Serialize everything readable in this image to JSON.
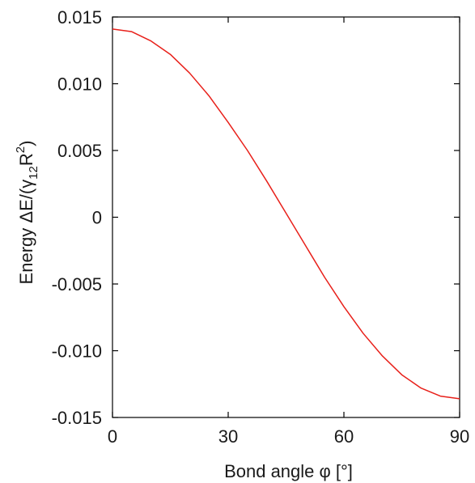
{
  "chart_data": {
    "type": "line",
    "title": "",
    "xlabel": "Bond angle φ [°]",
    "ylabel": "Energy ΔE/(γ12R2)",
    "ylabel_parts": {
      "prefix": "Energy ΔE/(γ",
      "sub": "12",
      "mid": "R",
      "sup": "2",
      "suffix": ")"
    },
    "xlim": [
      0,
      90
    ],
    "ylim": [
      -0.015,
      0.015
    ],
    "xticks": [
      0,
      30,
      60,
      90
    ],
    "xtick_labels": [
      "0",
      "30",
      "60",
      "90"
    ],
    "yticks": [
      0.015,
      0.01,
      0.005,
      0,
      -0.005,
      -0.01,
      -0.015
    ],
    "ytick_labels": [
      "0.015",
      "0.010",
      "0.005",
      "0",
      "-0.005",
      "-0.010",
      "-0.015"
    ],
    "grid": false,
    "legend": "none",
    "series": [
      {
        "color": "#e8201a",
        "x": [
          0,
          5,
          10,
          15,
          20,
          25,
          30,
          35,
          40,
          45,
          50,
          55,
          60,
          65,
          70,
          75,
          80,
          85,
          90
        ],
        "y": [
          0.0141,
          0.0139,
          0.0132,
          0.0122,
          0.0108,
          0.0091,
          0.0071,
          0.005,
          0.0027,
          0.0003,
          -0.0021,
          -0.0045,
          -0.0067,
          -0.0087,
          -0.0104,
          -0.0118,
          -0.0128,
          -0.0134,
          -0.0136
        ]
      }
    ]
  }
}
